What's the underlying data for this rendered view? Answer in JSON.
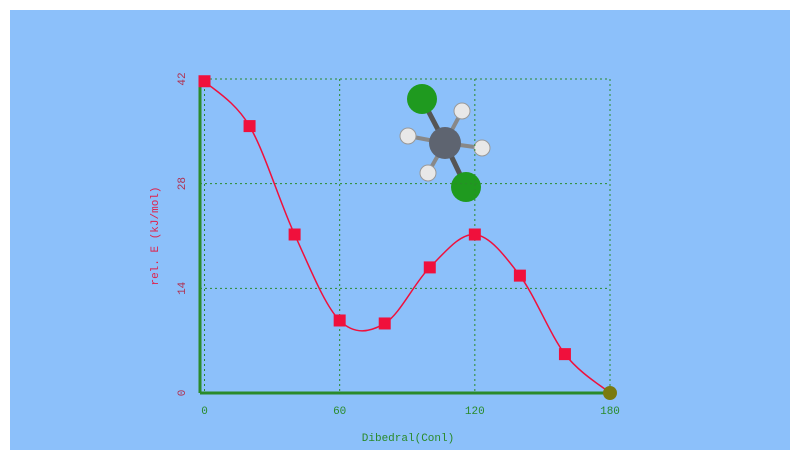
{
  "chart_data": {
    "type": "line",
    "x_label": "Dibedral(Conl)",
    "y_label": "rel. E (kJ/mol)",
    "x": [
      0,
      20,
      40,
      60,
      80,
      100,
      120,
      140,
      160,
      180
    ],
    "series": [
      {
        "color": "#f0103c",
        "values": [
          41.7,
          35.7,
          21.2,
          9.7,
          9.3,
          16.8,
          21.2,
          15.7,
          5.2,
          0
        ]
      }
    ],
    "highlight_index": 9,
    "highlight_color": "#7a7a10",
    "xlim": [
      -2,
      180
    ],
    "xticks": [
      0,
      60,
      120,
      180
    ],
    "ylim": [
      0,
      42
    ],
    "yticks": [
      0,
      14,
      28,
      42
    ],
    "grid": true,
    "axis_color": "#2a8a2a"
  }
}
